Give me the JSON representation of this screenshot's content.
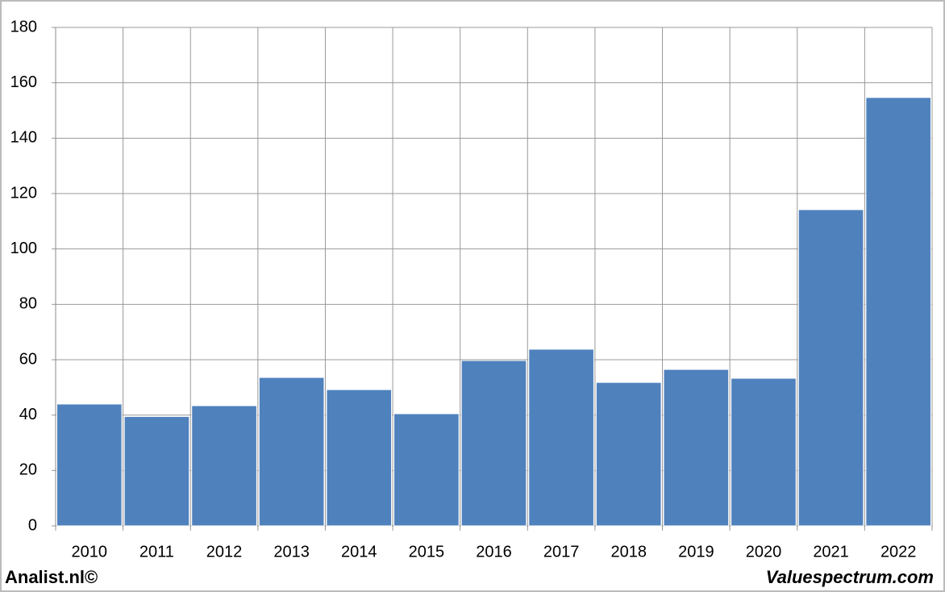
{
  "chart_data": {
    "type": "bar",
    "categories": [
      "2010",
      "2011",
      "2012",
      "2013",
      "2014",
      "2015",
      "2016",
      "2017",
      "2018",
      "2019",
      "2020",
      "2021",
      "2022"
    ],
    "values": [
      44,
      39.5,
      43.4,
      53.6,
      49.2,
      40.5,
      59.7,
      63.8,
      51.8,
      56.5,
      53.3,
      114.2,
      154.7
    ],
    "color": "#4f81bd",
    "ylim": [
      0,
      180
    ],
    "yticks": [
      0,
      20,
      40,
      60,
      80,
      100,
      120,
      140,
      160,
      180
    ],
    "grid": true
  },
  "footer": {
    "left": "Analist.nl©",
    "right": "Valuespectrum.com"
  }
}
